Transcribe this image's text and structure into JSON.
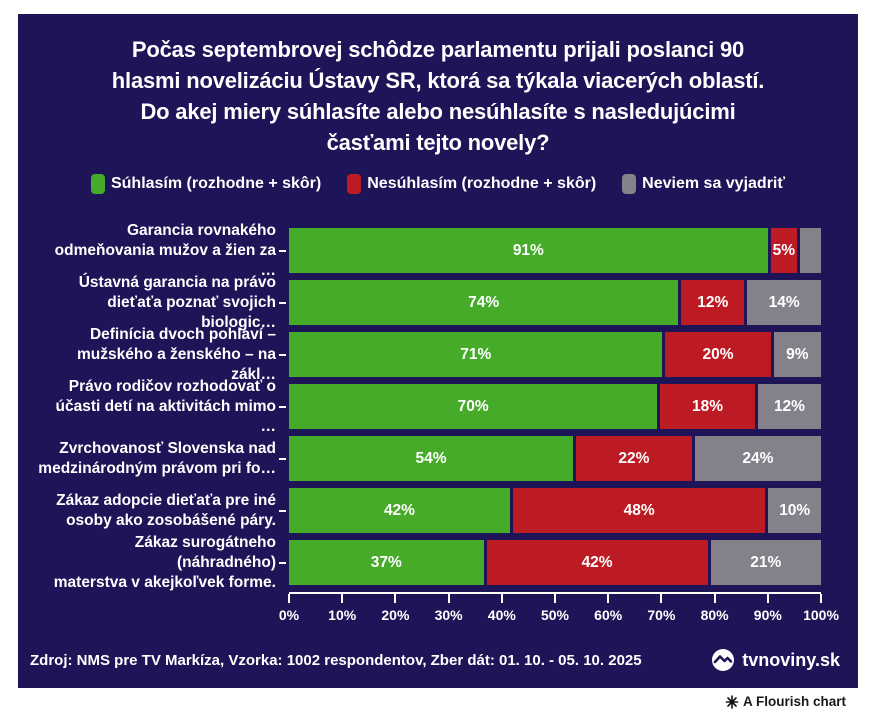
{
  "title": {
    "lines": [
      "Počas septembrovej schôdze parlamentu prijali poslanci 90",
      "hlasmi novelizáciu Ústavy SR, ktorá sa týkala viacerých oblastí.",
      "Do akej miery súhlasíte alebo nesúhlasíte s nasledujúcimi",
      "časťami tejto novely?"
    ]
  },
  "colors": {
    "background": "#1e1458",
    "text": "#ffffff",
    "agree_green": "#45ab29",
    "disagree_red": "#bd1b23",
    "neutral_gray": "#84818b",
    "attribution_text": "#1a1a1a"
  },
  "chart_data": {
    "type": "bar",
    "stacked": true,
    "orientation": "horizontal",
    "categories": [
      "Garancia rovnakého odmeňovania mužov a žien za …",
      "Ústavná garancia na právo dieťaťa poznať svojich biologic…",
      "Definícia dvoch pohlaví – mužského a ženského – na zákl…",
      "Právo rodičov rozhodovať o účasti detí na aktivitách mimo …",
      "Zvrchovanosť Slovenska nad medzinárodným právom pri fo…",
      "Zákaz adopcie dieťaťa pre iné osoby ako zosobášené páry.",
      "Zákaz surogátneho (náhradného) materstva v akejkoľvek forme."
    ],
    "category_lines": [
      [
        "Garancia rovnakého",
        "odmeňovania mužov a žien za …"
      ],
      [
        "Ústavná garancia na právo",
        "dieťaťa poznať svojich biologic…"
      ],
      [
        "Definícia dvoch pohlaví –",
        "mužského a ženského – na zákl…"
      ],
      [
        "Právo rodičov rozhodovať o",
        "účasti detí na aktivitách mimo …"
      ],
      [
        "Zvrchovanosť Slovenska nad",
        "medzinárodným právom pri fo…"
      ],
      [
        "Zákaz adopcie dieťaťa pre iné",
        "osoby ako zosobášené páry."
      ],
      [
        "Zákaz surogátneho (náhradného)",
        "materstva v akejkoľvek forme."
      ]
    ],
    "series": [
      {
        "name": "Súhlasím (rozhodne + skôr)",
        "key": "agree",
        "color": "#45ab29",
        "values": [
          91,
          74,
          71,
          70,
          54,
          42,
          37
        ],
        "labels": [
          "91%",
          "74%",
          "71%",
          "70%",
          "54%",
          "42%",
          "37%"
        ]
      },
      {
        "name": "Nesúhlasím (rozhodne + skôr)",
        "key": "disagree",
        "color": "#bd1b23",
        "values": [
          5,
          12,
          20,
          18,
          22,
          48,
          42
        ],
        "labels": [
          "5%",
          "12%",
          "20%",
          "18%",
          "22%",
          "48%",
          "42%"
        ]
      },
      {
        "name": "Neviem sa vyjadriť",
        "key": "neutral",
        "color": "#84818b",
        "values": [
          4,
          14,
          9,
          12,
          24,
          10,
          21
        ],
        "labels": [
          "",
          "14%",
          "9%",
          "12%",
          "24%",
          "10%",
          "21%"
        ]
      }
    ],
    "x_ticks": [
      "0%",
      "10%",
      "20%",
      "30%",
      "40%",
      "50%",
      "60%",
      "70%",
      "80%",
      "90%",
      "100%"
    ],
    "xlim": [
      0,
      100
    ],
    "legend_position": "top",
    "grid": false
  },
  "footer": {
    "source": "Zdroj: NMS pre TV Markíza, Vzorka: 1002 respondentov, Zber dát: 01. 10. - 05. 10. 2025",
    "logo_text": "tvnoviny.sk"
  },
  "attribution": {
    "label": "A Flourish chart"
  }
}
